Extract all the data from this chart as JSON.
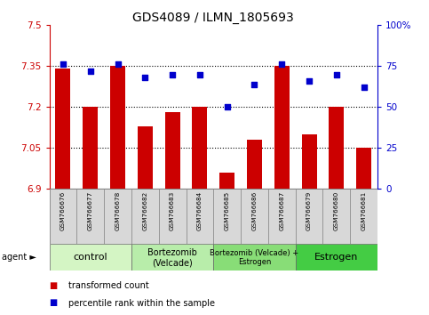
{
  "title": "GDS4089 / ILMN_1805693",
  "samples": [
    "GSM766676",
    "GSM766677",
    "GSM766678",
    "GSM766682",
    "GSM766683",
    "GSM766684",
    "GSM766685",
    "GSM766686",
    "GSM766687",
    "GSM766679",
    "GSM766680",
    "GSM766681"
  ],
  "bar_values": [
    7.34,
    7.2,
    7.35,
    7.13,
    7.18,
    7.2,
    6.96,
    7.08,
    7.35,
    7.1,
    7.2,
    7.05
  ],
  "percentile_values": [
    76,
    72,
    76,
    68,
    70,
    70,
    50,
    64,
    76,
    66,
    70,
    62
  ],
  "bar_color": "#cc0000",
  "dot_color": "#0000cc",
  "ylim_left": [
    6.9,
    7.5
  ],
  "ylim_right": [
    0,
    100
  ],
  "yticks_left": [
    6.9,
    7.05,
    7.2,
    7.35,
    7.5
  ],
  "ytick_labels_left": [
    "6.9",
    "7.05",
    "7.2",
    "7.35",
    "7.5"
  ],
  "yticks_right": [
    0,
    25,
    50,
    75,
    100
  ],
  "ytick_labels_right": [
    "0",
    "25",
    "50",
    "75",
    "100%"
  ],
  "hlines": [
    7.05,
    7.2,
    7.35
  ],
  "groups": [
    {
      "label": "control",
      "start": 0,
      "end": 3,
      "color": "#d4f5c4",
      "fontsize": 8
    },
    {
      "label": "Bortezomib\n(Velcade)",
      "start": 3,
      "end": 6,
      "color": "#b8edaa",
      "fontsize": 7
    },
    {
      "label": "Bortezomib (Velcade) +\nEstrogen",
      "start": 6,
      "end": 9,
      "color": "#88dd77",
      "fontsize": 6
    },
    {
      "label": "Estrogen",
      "start": 9,
      "end": 12,
      "color": "#44cc44",
      "fontsize": 8
    }
  ],
  "bar_base": 6.9,
  "title_fontsize": 10,
  "tick_fontsize": 7.5,
  "label_fontsize": 6
}
